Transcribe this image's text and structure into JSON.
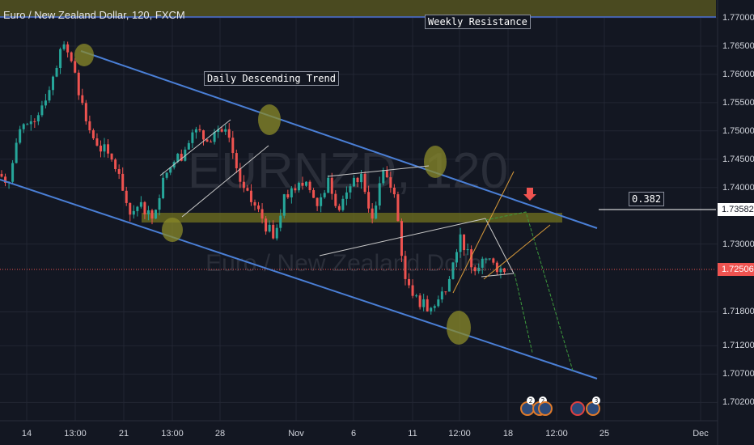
{
  "header": {
    "title": "Euro / New Zealand Dollar, 120, FXCM"
  },
  "watermark": {
    "symbol": "EURNZD, 120",
    "name": "Euro / New Zealand Dollar"
  },
  "annotations": {
    "weekly_resistance": "Weekly Resistance",
    "daily_trend": "Daily Descending Trend",
    "fib_level": "0.382"
  },
  "price_axis": {
    "labels": [
      "1.77000",
      "1.76500",
      "1.76000",
      "1.75500",
      "1.75000",
      "1.74500",
      "1.74000",
      "1.73000",
      "1.71800",
      "1.71200",
      "1.70700",
      "1.70200"
    ],
    "fib_price": "1.73582",
    "current_price": "1.72506"
  },
  "time_axis": {
    "labels": [
      "14",
      "13:00",
      "21",
      "13:00",
      "28",
      "Nov",
      "6",
      "11",
      "12:00",
      "18",
      "12:00",
      "25",
      "Dec"
    ]
  },
  "events": [
    {
      "count": "2"
    },
    {
      "count": "2"
    },
    {
      "count": ""
    },
    {
      "count": "3"
    }
  ],
  "colors": {
    "background": "#131722",
    "up": "#26a69a",
    "down": "#ef5350",
    "channel": "#4a7fd6",
    "zone": "#6b6b1f",
    "current": "#ef5350"
  },
  "chart_data": {
    "type": "candlestick",
    "symbol": "EURNZD",
    "interval": "120",
    "ylim": [
      1.7,
      1.773
    ],
    "yticks": [
      1.77,
      1.765,
      1.76,
      1.755,
      1.75,
      1.745,
      1.74,
      1.73,
      1.718,
      1.712,
      1.707,
      1.702
    ],
    "closes": [
      1.7424,
      1.741,
      1.7503,
      1.7517,
      1.7545,
      1.7596,
      1.7653,
      1.7603,
      1.7517,
      1.7474,
      1.746,
      1.7424,
      1.7352,
      1.7374,
      1.7345,
      1.7417,
      1.7445,
      1.7467,
      1.7503,
      1.7481,
      1.7503,
      1.7488,
      1.741,
      1.7374,
      1.7345,
      1.731,
      1.7388,
      1.7395,
      1.741,
      1.7367,
      1.7417,
      1.736,
      1.7402,
      1.7424,
      1.7345,
      1.7431,
      1.7388,
      1.7238,
      1.7209,
      1.7181,
      1.7202,
      1.7238,
      1.7317,
      1.7259,
      1.7274,
      1.7267,
      1.72506
    ],
    "levels": {
      "weekly_resistance": 1.77,
      "support_zone": [
        1.7345,
        1.7362
      ],
      "fib_0382": 1.73582,
      "last": 1.72506
    },
    "grid": true
  }
}
